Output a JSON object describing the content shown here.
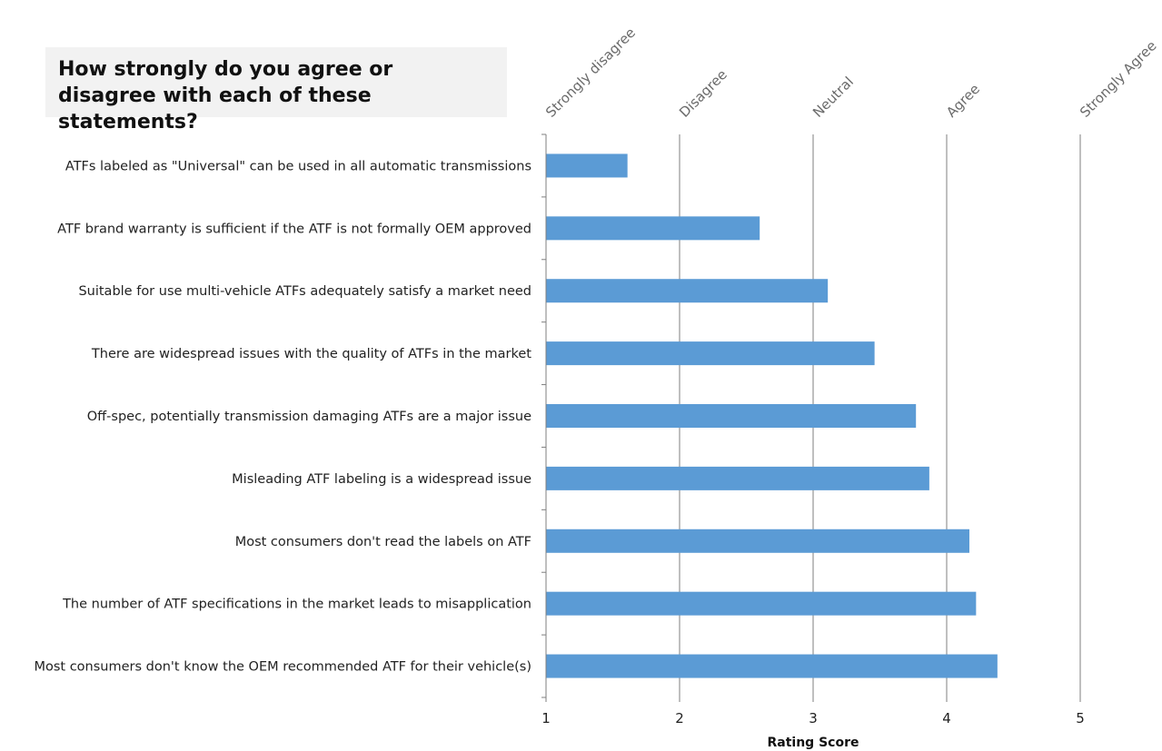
{
  "title": "How strongly do you agree or disagree with each of these statements?",
  "chart_data": {
    "type": "bar",
    "orientation": "horizontal",
    "title": "How strongly do you agree or disagree with each of these statements?",
    "xlabel": "Rating Score",
    "ylabel": "",
    "xlim": [
      1,
      5
    ],
    "x_ticks": [
      "1",
      "2",
      "3",
      "4",
      "5"
    ],
    "scale_labels": [
      "Strongly disagree",
      "Disagree",
      "Neutral",
      "Agree",
      "Strongly Agree"
    ],
    "grid": "vertical gridlines at 2, 3, 4, 5",
    "bar_color": "#5b9bd5",
    "categories": [
      "ATFs labeled as \"Universal\" can be used in all automatic transmissions",
      "ATF brand warranty is sufficient if the ATF is not formally OEM approved",
      "Suitable for use multi-vehicle ATFs adequately satisfy a market need",
      "There are widespread issues with the quality of ATFs in the market",
      "Off-spec, potentially transmission damaging ATFs are a major issue",
      "Misleading ATF labeling is a widespread issue",
      "Most consumers don't read the labels on ATF",
      "The number of ATF specifications in the market leads to misapplication",
      "Most consumers don't know the OEM recommended ATF for their vehicle(s)"
    ],
    "values": [
      1.61,
      2.6,
      3.11,
      3.46,
      3.77,
      3.87,
      4.17,
      4.22,
      4.38
    ]
  }
}
